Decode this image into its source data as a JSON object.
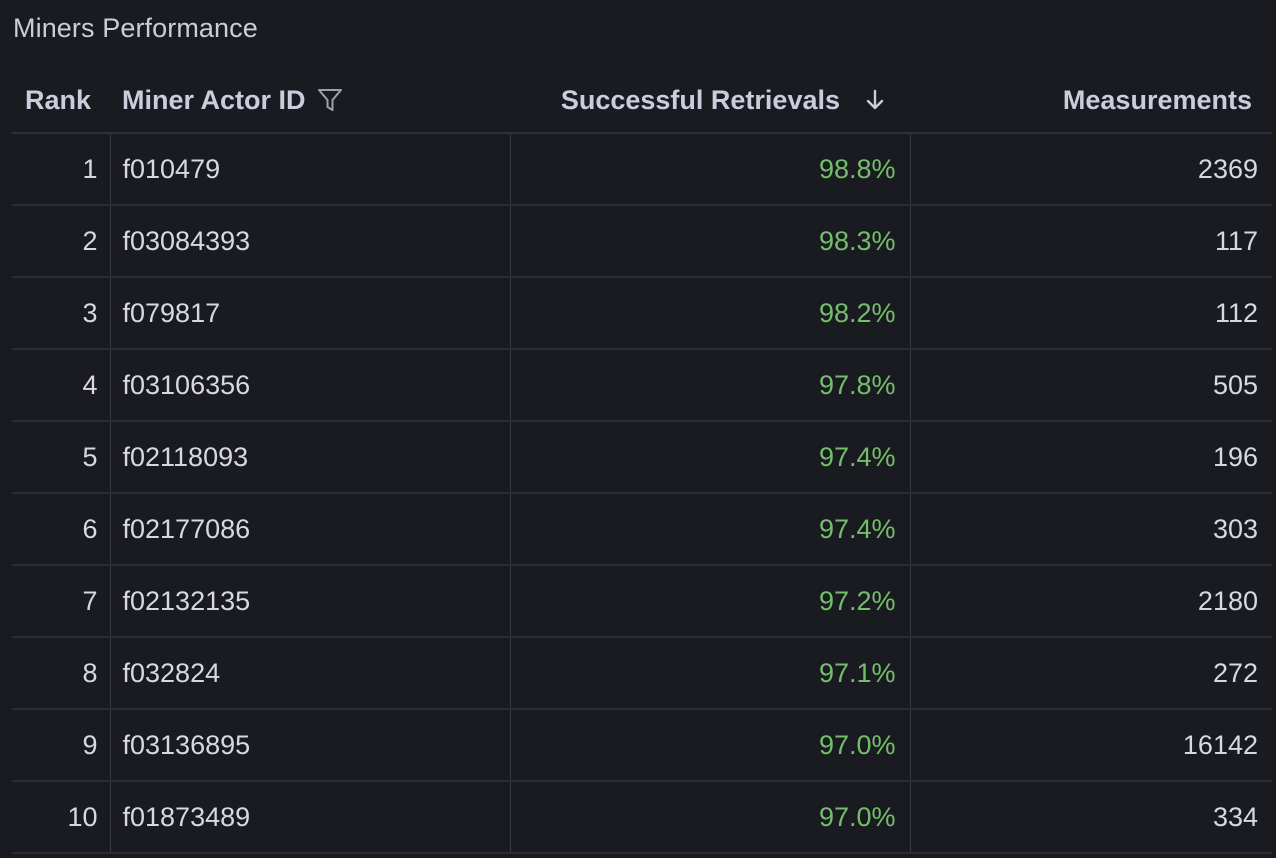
{
  "panel": {
    "title": "Miners Performance"
  },
  "table": {
    "columns": {
      "rank": "Rank",
      "miner_id": "Miner Actor ID",
      "successful": "Successful Retrievals",
      "measurements": "Measurements"
    },
    "sort": {
      "column": "successful",
      "direction": "descending",
      "icon": "arrow-down-icon"
    },
    "filter_icon": "filter-icon",
    "colors": {
      "background": "#1a1b20",
      "text": "#d8d9de",
      "success_text": "#73bf69",
      "divider": "#2c2d33"
    },
    "rows": [
      {
        "rank": "1",
        "miner_id": "f010479",
        "successful": "98.8%",
        "measurements": "2369"
      },
      {
        "rank": "2",
        "miner_id": "f03084393",
        "successful": "98.3%",
        "measurements": "117"
      },
      {
        "rank": "3",
        "miner_id": "f079817",
        "successful": "98.2%",
        "measurements": "112"
      },
      {
        "rank": "4",
        "miner_id": "f03106356",
        "successful": "97.8%",
        "measurements": "505"
      },
      {
        "rank": "5",
        "miner_id": "f02118093",
        "successful": "97.4%",
        "measurements": "196"
      },
      {
        "rank": "6",
        "miner_id": "f02177086",
        "successful": "97.4%",
        "measurements": "303"
      },
      {
        "rank": "7",
        "miner_id": "f02132135",
        "successful": "97.2%",
        "measurements": "2180"
      },
      {
        "rank": "8",
        "miner_id": "f032824",
        "successful": "97.1%",
        "measurements": "272"
      },
      {
        "rank": "9",
        "miner_id": "f03136895",
        "successful": "97.0%",
        "measurements": "16142"
      },
      {
        "rank": "10",
        "miner_id": "f01873489",
        "successful": "97.0%",
        "measurements": "334"
      }
    ]
  }
}
